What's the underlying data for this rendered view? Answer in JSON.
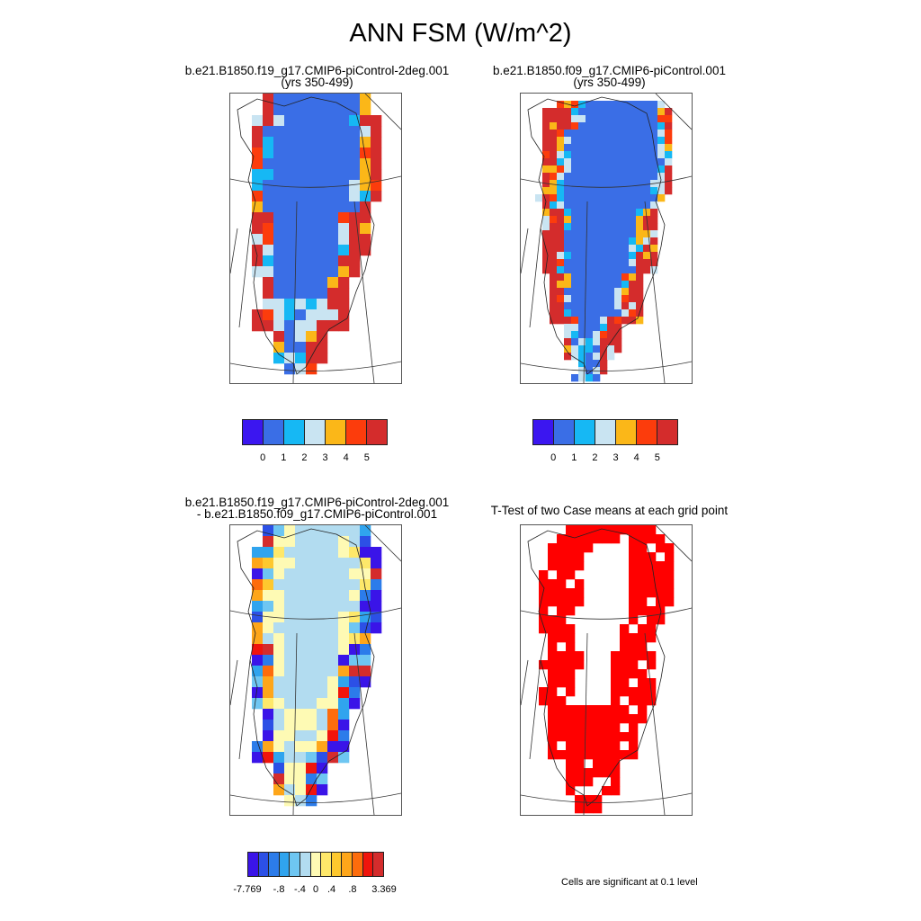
{
  "title": "ANN FSM (W/m^2)",
  "panels": [
    {
      "id": "case1",
      "title_line1": "b.e21.B1850.f19_g17.CMIP6-piControl-2deg.001",
      "title_line2": "(yrs 350-499)"
    },
    {
      "id": "case2",
      "title_line1": "b.e21.B1850.f09_g17.CMIP6-piControl.001",
      "title_line2": "(yrs 350-499)"
    },
    {
      "id": "diff",
      "title_line1": "b.e21.B1850.f19_g17.CMIP6-piControl-2deg.001",
      "title_line2": "- b.e21.B1850.f09_g17.CMIP6-piControl.001"
    },
    {
      "id": "ttest",
      "title_line1": "T-Test of two Case means at each grid point",
      "title_line2": ""
    }
  ],
  "colorbar_case": {
    "colors": [
      "#3b16f0",
      "#3a6ee6",
      "#16b8f4",
      "#c9e4f2",
      "#fbb718",
      "#fc3c0c",
      "#d42c2c"
    ],
    "labels": [
      "0",
      "1",
      "2",
      "3",
      "4",
      "5"
    ]
  },
  "colorbar_diff": {
    "colors": [
      "#3a14e8",
      "#2c50e6",
      "#2c7cea",
      "#30a4ee",
      "#6ec6f2",
      "#b2dcf0",
      "#fefab4",
      "#fee86a",
      "#fec82e",
      "#fea61a",
      "#fd6c0c",
      "#f0140c",
      "#d42c2c"
    ],
    "labels": [
      "-7.769",
      "-.8",
      "-.4",
      "0",
      ".4",
      ".8",
      "3.369"
    ]
  },
  "significance_note": "Cells are significant at 0.1 level",
  "significance_color": "#ff0000"
}
